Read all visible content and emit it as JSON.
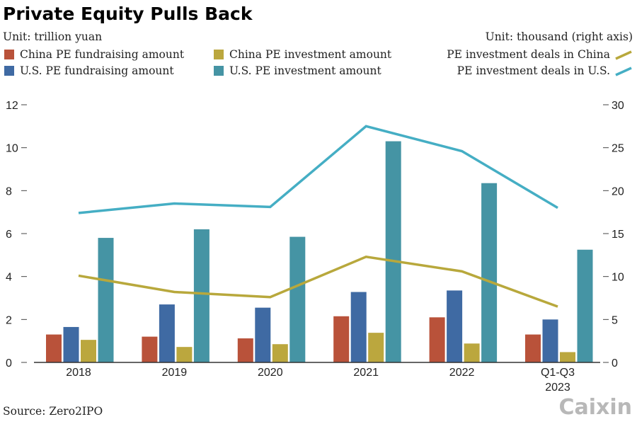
{
  "chart_data": {
    "type": "bar",
    "title": "Private Equity Pulls Back",
    "left_unit": "Unit: trillion yuan",
    "right_unit": "Unit: thousand (right axis)",
    "source": "Source: Zero2IPO",
    "logo": "Caixin",
    "categories": [
      "2018",
      "2019",
      "2020",
      "2021",
      "2022",
      "Q1-Q3 2023"
    ],
    "category_lines": [
      [
        "2018"
      ],
      [
        "2019"
      ],
      [
        "2020"
      ],
      [
        "2021"
      ],
      [
        "2022"
      ],
      [
        "Q1-Q3",
        "2023"
      ]
    ],
    "ylim": [
      0,
      12
    ],
    "yticks": [
      0,
      2,
      4,
      6,
      8,
      10,
      12
    ],
    "y2lim": [
      0,
      30
    ],
    "y2ticks": [
      0,
      5,
      10,
      15,
      20,
      25,
      30
    ],
    "series": [
      {
        "name": "China PE fundraising amount",
        "type": "bar",
        "axis": "left",
        "color": "#b9523a",
        "values": [
          1.3,
          1.2,
          1.12,
          2.15,
          2.1,
          1.3
        ]
      },
      {
        "name": "U.S. PE fundraising amount",
        "type": "bar",
        "axis": "left",
        "color": "#3f6aa3",
        "values": [
          1.65,
          2.7,
          2.55,
          3.28,
          3.35,
          2.0
        ]
      },
      {
        "name": "China PE investment amount",
        "type": "bar",
        "axis": "left",
        "color": "#bba73e",
        "values": [
          1.05,
          0.72,
          0.85,
          1.38,
          0.88,
          0.48
        ]
      },
      {
        "name": "U.S. PE investment amount",
        "type": "bar",
        "axis": "left",
        "color": "#4594a4",
        "values": [
          5.8,
          6.2,
          5.85,
          10.3,
          8.35,
          5.25
        ]
      },
      {
        "name": "PE investment deals in China",
        "type": "line",
        "axis": "right",
        "color": "#b8a83c",
        "values": [
          10.1,
          8.2,
          7.6,
          12.3,
          10.6,
          6.5
        ]
      },
      {
        "name": "PE investment deals in U.S.",
        "type": "line",
        "axis": "right",
        "color": "#45aec4",
        "values": [
          17.4,
          18.5,
          18.1,
          27.5,
          24.6,
          18.0
        ]
      }
    ]
  }
}
